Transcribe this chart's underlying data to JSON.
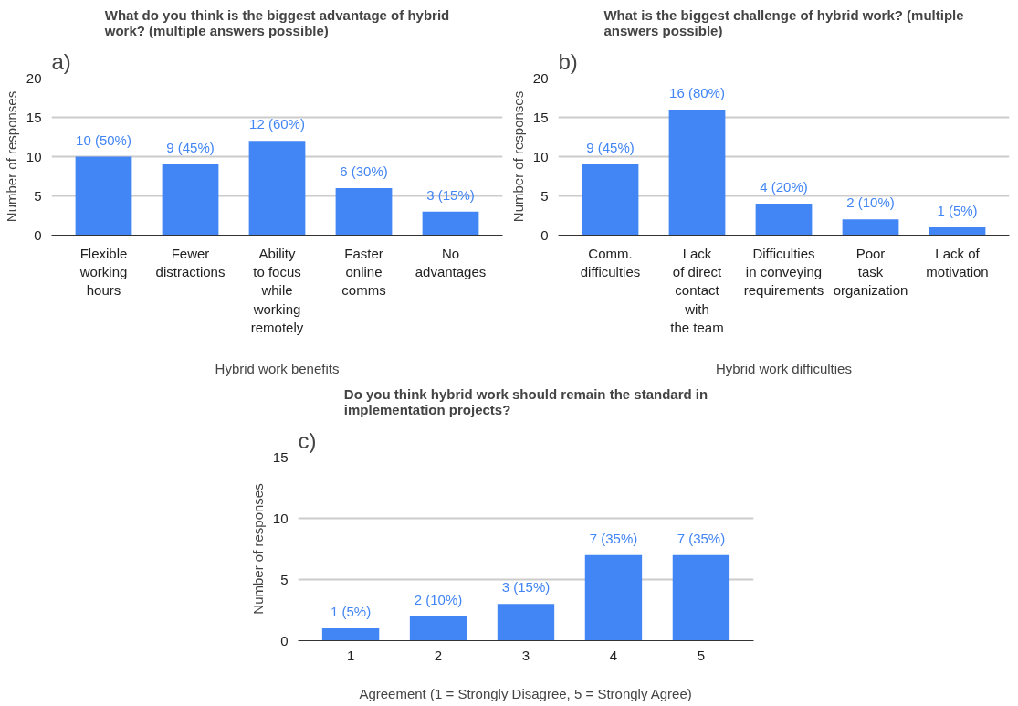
{
  "chart_data": [
    {
      "type": "bar",
      "title": "What do you think is the biggest advantage of hybrid work? (multiple answers possible)",
      "xlabel": "Hybrid work benefits",
      "ylabel": "Number of responses",
      "annotations": [
        "a)"
      ],
      "categories": [
        "Flexible\nworking\nhours",
        "Fewer\ndistractions",
        "Ability\nto focus\nwhile\nworking\nremotely",
        "Faster\nonline\ncomms",
        "No\nadvantages"
      ],
      "values": [
        10,
        9,
        12,
        6,
        3
      ],
      "color": "#4285f4",
      "value_labels": [
        "10 (50%)",
        "9 (45%)",
        "12 (60%)",
        "6 (30%)",
        "3 (15%)"
      ],
      "ylim": [
        0,
        20
      ],
      "yticks": [
        0,
        5,
        10,
        15,
        20
      ],
      "grid": "y"
    },
    {
      "type": "bar",
      "title": "What is the biggest challenge of hybrid work? (multiple answers possible)",
      "xlabel": "Hybrid work difficulties",
      "ylabel": "Number of responses",
      "annotations": [
        "b)"
      ],
      "categories": [
        "Comm.\ndifficulties",
        "Lack\nof direct\ncontact\nwith\nthe team",
        "Difficulties\nin conveying\nrequirements",
        "Poor\ntask\norganization",
        "Lack of\nmotivation"
      ],
      "values": [
        9,
        16,
        4,
        2,
        1
      ],
      "color": "#4285f4",
      "value_labels": [
        "9 (45%)",
        "16 (80%)",
        "4 (20%)",
        "2 (10%)",
        "1 (5%)"
      ],
      "ylim": [
        0,
        20
      ],
      "yticks": [
        0,
        5,
        10,
        15,
        20
      ],
      "grid": "y"
    },
    {
      "type": "bar",
      "title": "Do you think hybrid work should remain the standard in implementation projects?",
      "xlabel": "Agreement (1 = Strongly Disagree, 5 = Strongly Agree)",
      "ylabel": "Number of responses",
      "annotations": [
        "c)"
      ],
      "categories": [
        "1",
        "2",
        "3",
        "4",
        "5"
      ],
      "values": [
        1,
        2,
        3,
        7,
        7
      ],
      "color": "#4285f4",
      "value_labels": [
        "1 (5%)",
        "2 (10%)",
        "3 (15%)",
        "7 (35%)",
        "7 (35%)"
      ],
      "ylim": [
        0,
        15
      ],
      "yticks": [
        0,
        5,
        10,
        15
      ],
      "grid": "y"
    }
  ]
}
